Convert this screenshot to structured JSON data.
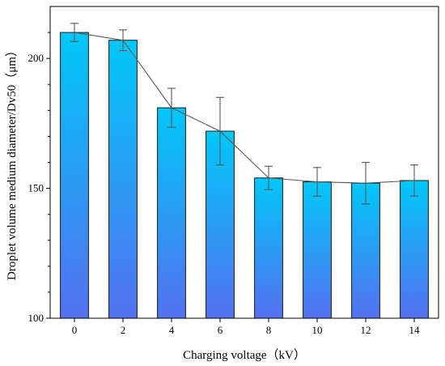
{
  "chart_data": {
    "type": "bar",
    "categories": [
      "0",
      "2",
      "4",
      "6",
      "8",
      "10",
      "12",
      "14"
    ],
    "values": [
      210,
      207,
      181,
      172,
      154,
      152.5,
      152,
      153
    ],
    "errors": [
      3.5,
      4,
      7.5,
      13,
      4.5,
      5.5,
      8,
      6
    ],
    "line_overlay": true,
    "xlabel": "Charging voltage（kV）",
    "ylabel": "Droplet volume medium diameter/Dv50（μm）",
    "ylim": [
      100,
      220
    ],
    "yticks": [
      100,
      150,
      200
    ],
    "grid": false,
    "colors": {
      "bar_top": "#00c8f8",
      "bar_bottom": "#5470f0",
      "bar_edge": "#1a1a1a",
      "line": "#555555",
      "error_bar": "#555555"
    }
  }
}
